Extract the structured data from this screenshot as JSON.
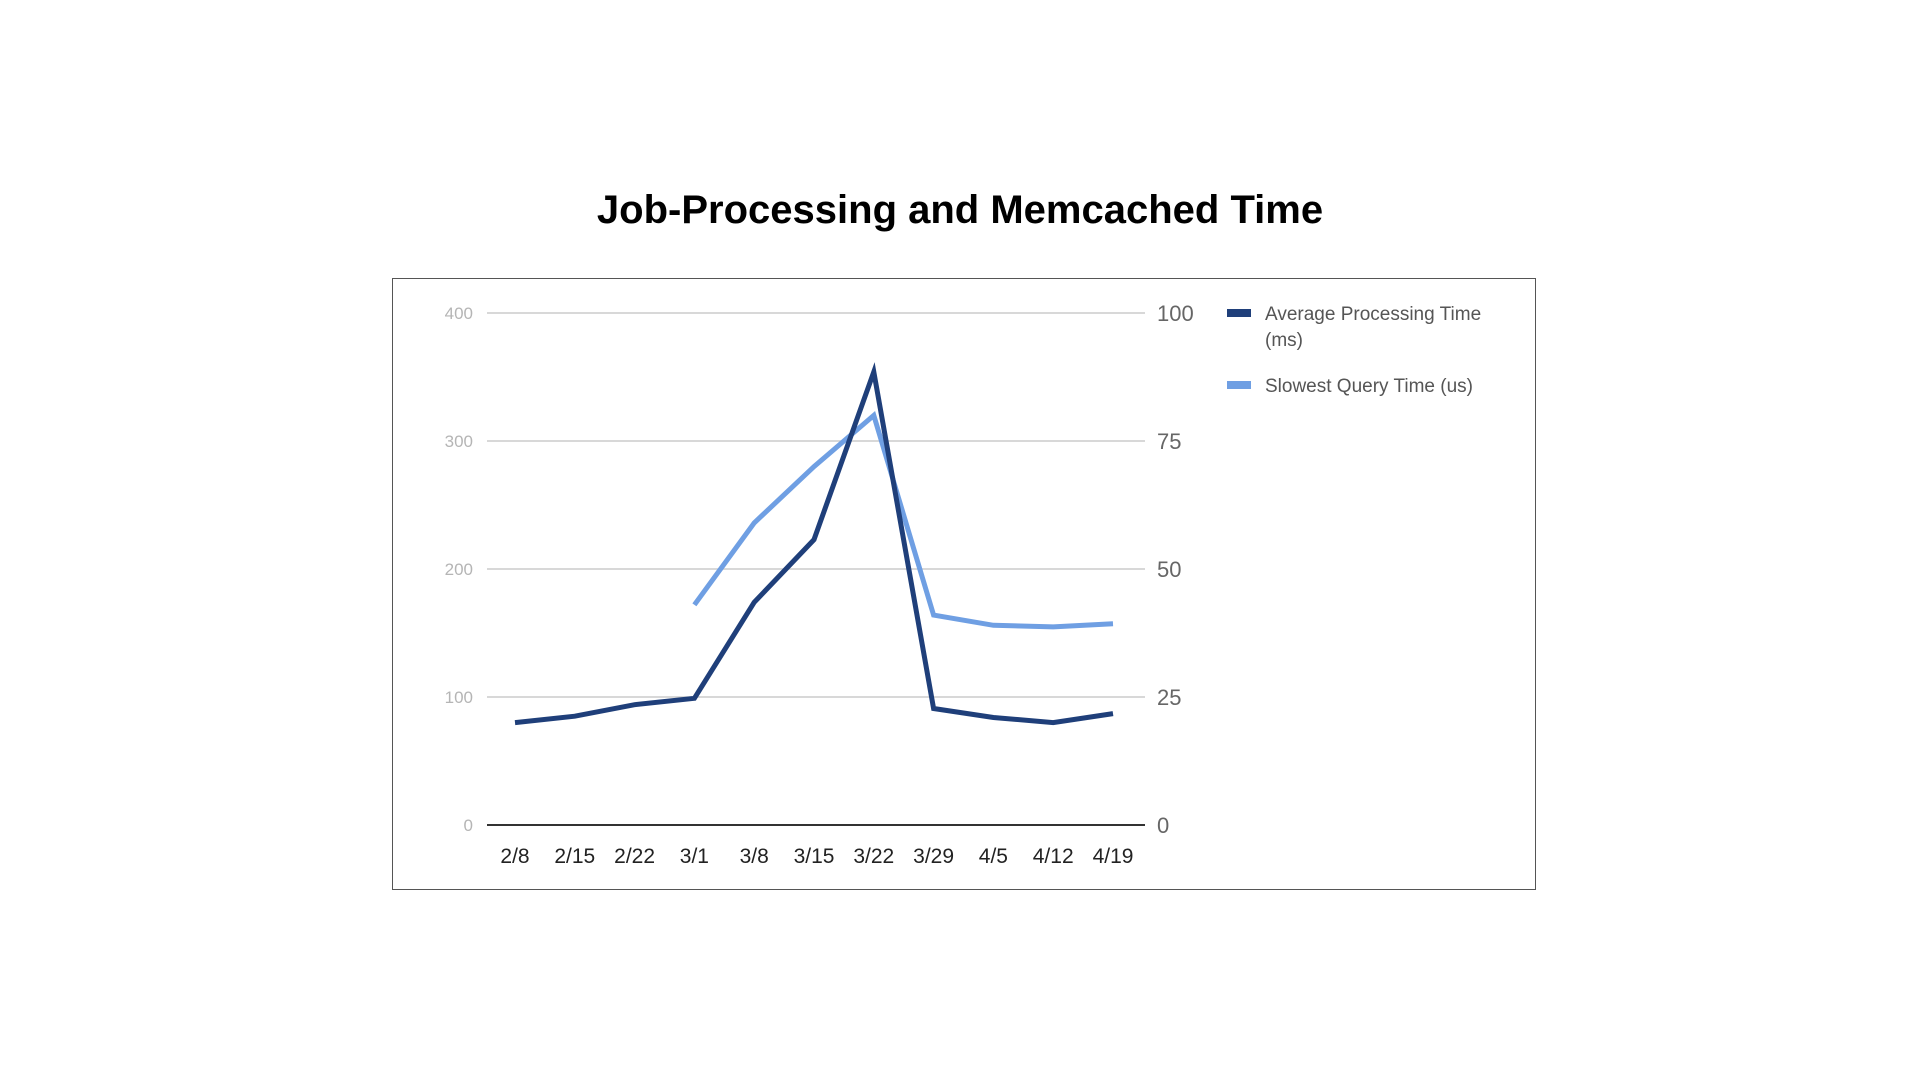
{
  "chart_data": {
    "type": "line",
    "title": "Job-Processing and Memcached Time",
    "categories": [
      "2/8",
      "2/15",
      "2/22",
      "3/1",
      "3/8",
      "3/15",
      "3/22",
      "3/29",
      "4/5",
      "4/12",
      "4/19"
    ],
    "y_left": {
      "ylim": [
        0,
        400
      ],
      "ticks": [
        "0",
        "100",
        "200",
        "300",
        "400"
      ]
    },
    "y_right": {
      "ylim": [
        0,
        100
      ],
      "ticks": [
        "0",
        "25",
        "50",
        "75",
        "100"
      ]
    },
    "grid": true,
    "legend_position": "right",
    "series": [
      {
        "name": "Average Processing Time (ms)",
        "legend_lines": [
          "Average Processing Time",
          "(ms)"
        ],
        "axis": "left",
        "color": "#1f3f7a",
        "values": [
          80,
          85,
          94,
          99,
          174,
          223,
          354,
          91,
          84,
          80,
          87
        ]
      },
      {
        "name": "Slowest Query Time (us)",
        "legend_lines": [
          "Slowest Query Time (us)"
        ],
        "axis": "right",
        "color": "#6f9fe3",
        "values": [
          null,
          null,
          null,
          43,
          59,
          70,
          80,
          41,
          39,
          38.7,
          39.3
        ]
      }
    ]
  }
}
